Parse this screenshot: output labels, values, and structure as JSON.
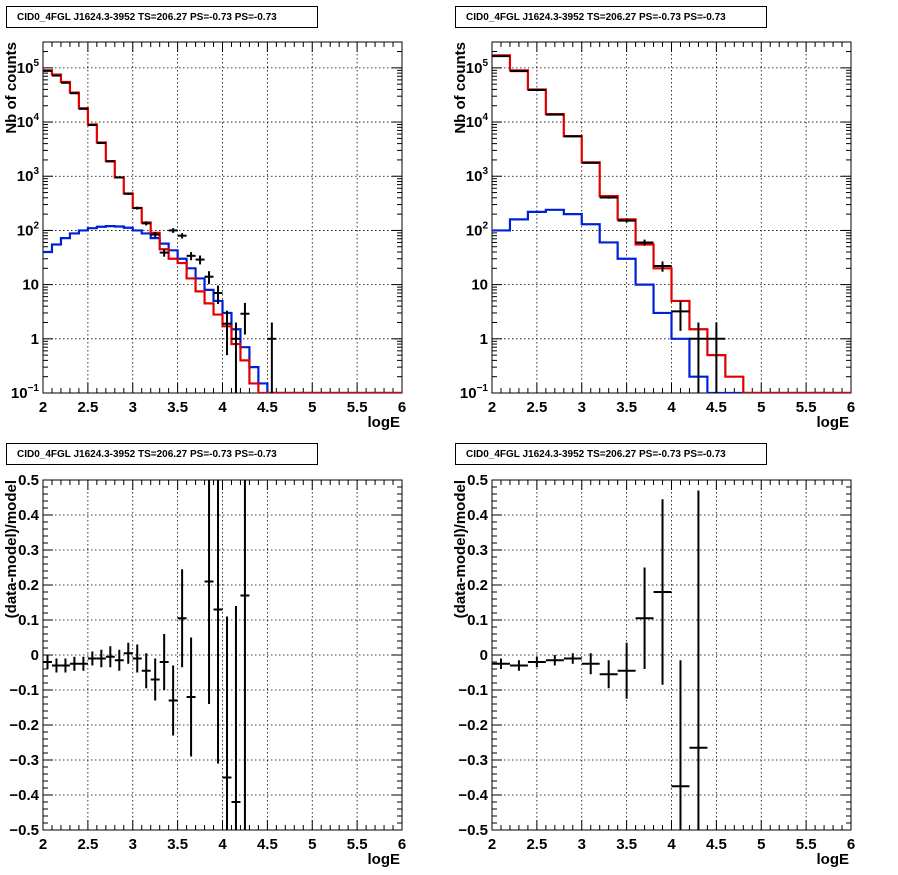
{
  "colors": {
    "data": "#000000",
    "total_model": "#e00000",
    "source_model": "#0020d8",
    "grid": "#000000"
  },
  "chart_data": [
    {
      "id": "top-left",
      "type": "line",
      "title": "CID0_4FGL J1624.3-3952 TS=206.27 PS=-0.73 PS=-0.73",
      "xlabel": "logE",
      "ylabel": "Nb of counts",
      "xlim": [
        2,
        6
      ],
      "ylim": [
        0.1,
        300000
      ],
      "yscale": "log",
      "grid": true,
      "xticks": [
        "2",
        "2.5",
        "3",
        "3.5",
        "4",
        "4.5",
        "5",
        "5.5",
        "6"
      ],
      "yticks": [
        {
          "value": 0.1,
          "label": "10",
          "sup": "−1"
        },
        {
          "value": 1,
          "label": "1",
          "sup": ""
        },
        {
          "value": 10,
          "label": "10",
          "sup": ""
        },
        {
          "value": 100,
          "label": "10",
          "sup": "2"
        },
        {
          "value": 1000,
          "label": "10",
          "sup": "3"
        },
        {
          "value": 10000,
          "label": "10",
          "sup": "4"
        },
        {
          "value": 100000,
          "label": "10",
          "sup": "5"
        }
      ],
      "bin_width": 0.1,
      "bin_edges_start": 2.0,
      "series": [
        {
          "role": "source_model",
          "values": [
            40,
            55,
            72,
            88,
            100,
            110,
            117,
            120,
            118,
            112,
            100,
            88,
            72,
            57,
            43,
            30,
            20,
            13,
            8,
            5,
            3,
            1.5,
            0.7,
            0.3,
            0.15,
            0.1,
            0.1,
            0.1,
            0.1,
            0.1,
            0.1,
            0.1,
            0.1,
            0.1,
            0.1,
            0.1,
            0.1,
            0.1,
            0.1,
            0.1
          ]
        },
        {
          "role": "total_model",
          "values": [
            90000,
            75000,
            55000,
            35000,
            18000,
            9000,
            4200,
            1900,
            950,
            480,
            260,
            140,
            90,
            45,
            30,
            25,
            13,
            7.5,
            4.5,
            2.8,
            1.7,
            0.8,
            0.4,
            0.15,
            0.08,
            0.06,
            0.06,
            0.06,
            0.06,
            0.06,
            0.06,
            0.06,
            0.06,
            0.06,
            0.06,
            0.06,
            0.06,
            0.06,
            0.06,
            0.06
          ]
        }
      ],
      "data_points": [
        {
          "x": 2.05,
          "y": 88000,
          "err": 300
        },
        {
          "x": 2.15,
          "y": 72000,
          "err": 270
        },
        {
          "x": 2.25,
          "y": 53000,
          "err": 230
        },
        {
          "x": 2.35,
          "y": 34000,
          "err": 185
        },
        {
          "x": 2.45,
          "y": 17500,
          "err": 130
        },
        {
          "x": 2.55,
          "y": 8800,
          "err": 94
        },
        {
          "x": 2.65,
          "y": 4100,
          "err": 64
        },
        {
          "x": 2.75,
          "y": 1880,
          "err": 43
        },
        {
          "x": 2.85,
          "y": 950,
          "err": 31
        },
        {
          "x": 2.95,
          "y": 475,
          "err": 22
        },
        {
          "x": 3.05,
          "y": 258,
          "err": 16
        },
        {
          "x": 3.15,
          "y": 135,
          "err": 11.6
        },
        {
          "x": 3.25,
          "y": 84,
          "err": 9.2
        },
        {
          "x": 3.35,
          "y": 39,
          "err": 6.2
        },
        {
          "x": 3.45,
          "y": 100,
          "err": 10
        },
        {
          "x": 3.55,
          "y": 80,
          "err": 9
        },
        {
          "x": 3.65,
          "y": 34,
          "err": 5.8
        },
        {
          "x": 3.75,
          "y": 29,
          "err": 5.4
        },
        {
          "x": 3.85,
          "y": 14,
          "err": 3.7
        },
        {
          "x": 3.95,
          "y": 7,
          "err": 2.6
        },
        {
          "x": 4.05,
          "y": 1.9,
          "err": 1.4
        },
        {
          "x": 4.15,
          "y": 1,
          "err": 1
        },
        {
          "x": 4.25,
          "y": 2.9,
          "err": 1.7
        },
        {
          "x": 4.55,
          "y": 1,
          "err": 1
        }
      ]
    },
    {
      "id": "top-right",
      "type": "line",
      "title": "CID0_4FGL J1624.3-3952 TS=206.27 PS=-0.73 PS=-0.73",
      "xlabel": "logE",
      "ylabel": "Nb of counts",
      "xlim": [
        2,
        6
      ],
      "ylim": [
        0.1,
        300000
      ],
      "yscale": "log",
      "grid": true,
      "xticks": [
        "2",
        "2.5",
        "3",
        "3.5",
        "4",
        "4.5",
        "5",
        "5.5",
        "6"
      ],
      "yticks": [
        {
          "value": 0.1,
          "label": "10",
          "sup": "−1"
        },
        {
          "value": 1,
          "label": "1",
          "sup": ""
        },
        {
          "value": 10,
          "label": "10",
          "sup": ""
        },
        {
          "value": 100,
          "label": "10",
          "sup": "2"
        },
        {
          "value": 1000,
          "label": "10",
          "sup": "3"
        },
        {
          "value": 10000,
          "label": "10",
          "sup": "4"
        },
        {
          "value": 100000,
          "label": "10",
          "sup": "5"
        }
      ],
      "bin_width": 0.2,
      "bin_edges_start": 2.0,
      "series": [
        {
          "role": "source_model",
          "values": [
            100,
            160,
            220,
            240,
            200,
            130,
            60,
            30,
            10,
            3,
            1,
            0.2,
            0.1,
            0.1,
            0.1,
            0.1,
            0.1,
            0.1,
            0.1,
            0.1
          ]
        },
        {
          "role": "total_model",
          "values": [
            170000,
            90000,
            40000,
            14000,
            5500,
            1800,
            430,
            160,
            55,
            20,
            5,
            1.5,
            0.5,
            0.2,
            0.05,
            0.05,
            0.05,
            0.05,
            0.05,
            0.05
          ]
        }
      ],
      "data_points": [
        {
          "x": 2.1,
          "y": 165000,
          "err": 410
        },
        {
          "x": 2.3,
          "y": 87000,
          "err": 295
        },
        {
          "x": 2.5,
          "y": 39000,
          "err": 200
        },
        {
          "x": 2.7,
          "y": 13700,
          "err": 117
        },
        {
          "x": 2.9,
          "y": 5450,
          "err": 74
        },
        {
          "x": 3.1,
          "y": 1760,
          "err": 42
        },
        {
          "x": 3.3,
          "y": 405,
          "err": 20
        },
        {
          "x": 3.5,
          "y": 152,
          "err": 12
        },
        {
          "x": 3.7,
          "y": 60,
          "err": 7.7
        },
        {
          "x": 3.9,
          "y": 22,
          "err": 4.7
        },
        {
          "x": 4.1,
          "y": 3.2,
          "err": 1.8
        },
        {
          "x": 4.3,
          "y": 1,
          "err": 1
        },
        {
          "x": 4.5,
          "y": 1,
          "err": 1
        }
      ]
    },
    {
      "id": "bottom-left",
      "type": "scatter",
      "title": "CID0_4FGL J1624.3-3952 TS=206.27 PS=-0.73 PS=-0.73",
      "xlabel": "logE",
      "ylabel": "(data-model)/model",
      "xlim": [
        2,
        6
      ],
      "ylim": [
        -0.5,
        0.5
      ],
      "grid": true,
      "xticks": [
        "2",
        "2.5",
        "3",
        "3.5",
        "4",
        "4.5",
        "5",
        "5.5",
        "6"
      ],
      "yticks": [
        "−0.5",
        "−0.4",
        "−0.3",
        "−0.2",
        "−0.1",
        "0",
        "0.1",
        "0.2",
        "0.3",
        "0.4",
        "0.5"
      ],
      "bin_width": 0.1,
      "data_points": [
        {
          "x": 2.05,
          "y": -0.02,
          "err": 0.02
        },
        {
          "x": 2.15,
          "y": -0.03,
          "err": 0.02
        },
        {
          "x": 2.25,
          "y": -0.03,
          "err": 0.02
        },
        {
          "x": 2.35,
          "y": -0.025,
          "err": 0.02
        },
        {
          "x": 2.45,
          "y": -0.025,
          "err": 0.02
        },
        {
          "x": 2.55,
          "y": -0.01,
          "err": 0.02
        },
        {
          "x": 2.65,
          "y": -0.01,
          "err": 0.025
        },
        {
          "x": 2.75,
          "y": -0.005,
          "err": 0.03
        },
        {
          "x": 2.85,
          "y": -0.015,
          "err": 0.03
        },
        {
          "x": 2.95,
          "y": 0.005,
          "err": 0.03
        },
        {
          "x": 3.05,
          "y": -0.01,
          "err": 0.04
        },
        {
          "x": 3.15,
          "y": -0.045,
          "err": 0.05
        },
        {
          "x": 3.25,
          "y": -0.07,
          "err": 0.06
        },
        {
          "x": 3.35,
          "y": -0.02,
          "err": 0.08
        },
        {
          "x": 3.45,
          "y": -0.13,
          "err": 0.1
        },
        {
          "x": 3.55,
          "y": 0.105,
          "err": 0.14
        },
        {
          "x": 3.65,
          "y": -0.12,
          "err": 0.17
        },
        {
          "x": 3.85,
          "y": 0.21,
          "err": 0.35
        },
        {
          "x": 3.95,
          "y": 0.13,
          "err": 0.44
        },
        {
          "x": 4.05,
          "y": -0.35,
          "err": 0.46
        },
        {
          "x": 4.15,
          "y": -0.42,
          "err": 0.56
        },
        {
          "x": 4.25,
          "y": 0.17,
          "err": 0.78
        }
      ]
    },
    {
      "id": "bottom-right",
      "type": "scatter",
      "title": "CID0_4FGL J1624.3-3952 TS=206.27 PS=-0.73 PS=-0.73",
      "xlabel": "logE",
      "ylabel": "(data-model)/model",
      "xlim": [
        2,
        6
      ],
      "ylim": [
        -0.5,
        0.5
      ],
      "grid": true,
      "xticks": [
        "2",
        "2.5",
        "3",
        "3.5",
        "4",
        "4.5",
        "5",
        "5.5",
        "6"
      ],
      "yticks": [
        "−0.5",
        "−0.4",
        "−0.3",
        "−0.2",
        "−0.1",
        "0",
        "0.1",
        "0.2",
        "0.3",
        "0.4",
        "0.5"
      ],
      "bin_width": 0.2,
      "data_points": [
        {
          "x": 2.1,
          "y": -0.025,
          "err": 0.015
        },
        {
          "x": 2.3,
          "y": -0.03,
          "err": 0.015
        },
        {
          "x": 2.5,
          "y": -0.02,
          "err": 0.015
        },
        {
          "x": 2.7,
          "y": -0.015,
          "err": 0.015
        },
        {
          "x": 2.9,
          "y": -0.01,
          "err": 0.015
        },
        {
          "x": 3.1,
          "y": -0.025,
          "err": 0.03
        },
        {
          "x": 3.3,
          "y": -0.055,
          "err": 0.04
        },
        {
          "x": 3.5,
          "y": -0.045,
          "err": 0.08
        },
        {
          "x": 3.7,
          "y": 0.105,
          "err": 0.145
        },
        {
          "x": 3.9,
          "y": 0.18,
          "err": 0.265
        },
        {
          "x": 4.1,
          "y": -0.375,
          "err": 0.36
        },
        {
          "x": 4.3,
          "y": -0.265,
          "err": 0.735
        }
      ]
    }
  ]
}
